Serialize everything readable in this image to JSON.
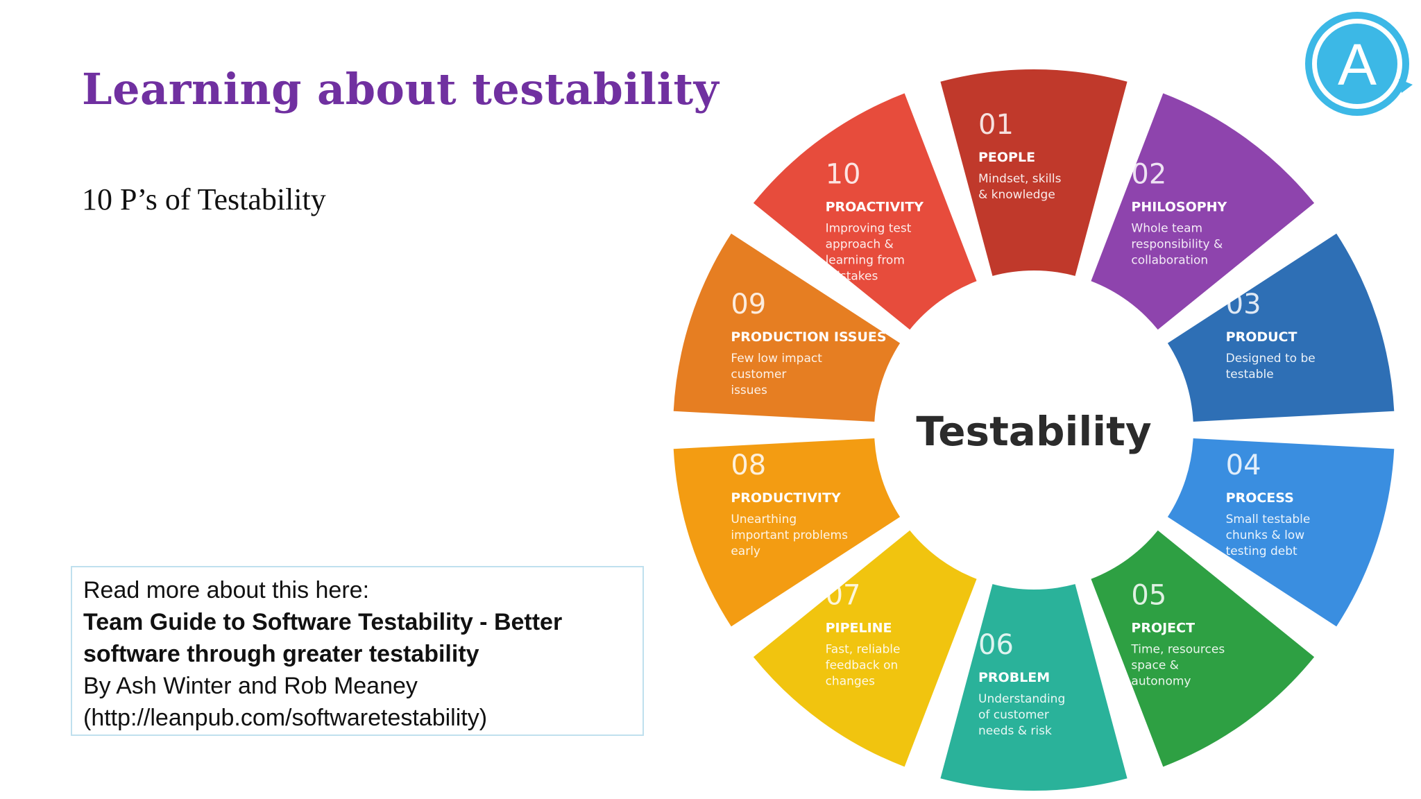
{
  "slide": {
    "title": "Learning about testability",
    "subtitle": "10 P’s of Testability"
  },
  "info_box": {
    "intro": "Read more about this here:",
    "book_title_line1": "Team Guide to Software Testability - Better",
    "book_title_line2": "software through greater testability",
    "authors": "By Ash Winter and Rob Meaney",
    "url": "(http://leanpub.com/softwaretestability)"
  },
  "wheel": {
    "center_label": "Testability",
    "segments": [
      {
        "num": "01",
        "title": "PEOPLE",
        "desc": [
          "Mindset, skills",
          "& knowledge"
        ],
        "color": "#c0392b"
      },
      {
        "num": "02",
        "title": "PHILOSOPHY",
        "desc": [
          "Whole team",
          "responsibility &",
          "collaboration"
        ],
        "color": "#8e44ad"
      },
      {
        "num": "03",
        "title": "PRODUCT",
        "desc": [
          "Designed to be",
          "testable"
        ],
        "color": "#2e6fb5"
      },
      {
        "num": "04",
        "title": "PROCESS",
        "desc": [
          "Small testable",
          "chunks & low",
          "testing debt"
        ],
        "color": "#3a8ee0"
      },
      {
        "num": "05",
        "title": "PROJECT",
        "desc": [
          "Time, resources",
          "space &",
          "autonomy"
        ],
        "color": "#2ea043"
      },
      {
        "num": "06",
        "title": "PROBLEM",
        "desc": [
          "Understanding",
          "of customer",
          "needs & risk"
        ],
        "color": "#2ab29a"
      },
      {
        "num": "07",
        "title": "PIPELINE",
        "desc": [
          "Fast, reliable",
          "feedback on",
          "changes"
        ],
        "color": "#f1c40f"
      },
      {
        "num": "08",
        "title": "PRODUCTIVITY",
        "desc": [
          "Unearthing",
          "important problems",
          "early"
        ],
        "color": "#f39c12"
      },
      {
        "num": "09",
        "title": "PRODUCTION ISSUES",
        "desc": [
          "Few low impact",
          "customer",
          "issues"
        ],
        "color": "#e67e22"
      },
      {
        "num": "10",
        "title": "PROACTIVITY",
        "desc": [
          "Improving test",
          "approach &",
          "learning from",
          "mistakes"
        ],
        "color": "#e74c3c"
      }
    ]
  },
  "logo": {
    "letter": "A",
    "color": "#3cb8e6"
  }
}
